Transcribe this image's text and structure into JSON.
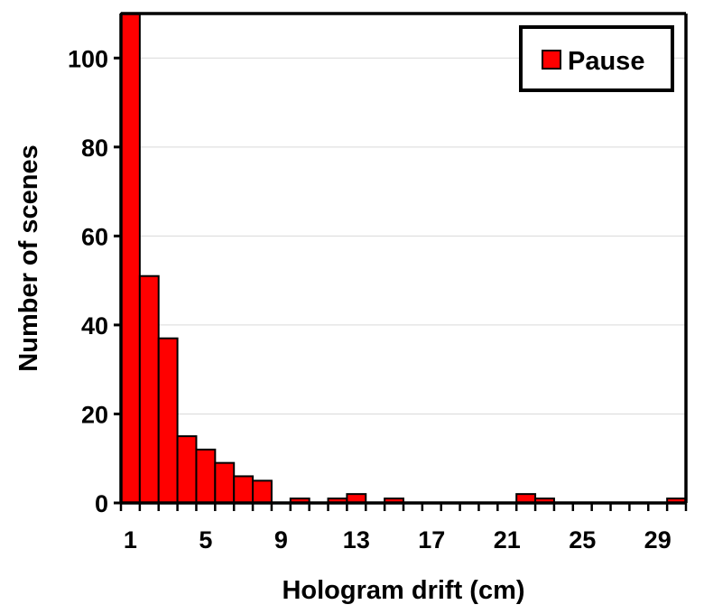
{
  "chart_data": {
    "type": "bar",
    "title": "",
    "xlabel": "Hologram drift (cm)",
    "ylabel": "Number of scenes",
    "categories": [
      1,
      2,
      3,
      4,
      5,
      6,
      7,
      8,
      9,
      10,
      11,
      12,
      13,
      14,
      15,
      16,
      17,
      18,
      19,
      20,
      21,
      22,
      23,
      24,
      25,
      26,
      27,
      28,
      29,
      30
    ],
    "series": [
      {
        "name": "Pause",
        "color": "#ff0000",
        "values": [
          110,
          51,
          37,
          15,
          12,
          9,
          6,
          5,
          0,
          1,
          0,
          1,
          2,
          0,
          1,
          0,
          0,
          0,
          0,
          0,
          0,
          2,
          1,
          0,
          0,
          0,
          0,
          0,
          0,
          1
        ]
      }
    ],
    "xticks": [
      1,
      5,
      9,
      13,
      17,
      21,
      25,
      29
    ],
    "yticks": [
      0,
      20,
      40,
      60,
      80,
      100
    ],
    "ylim": [
      0,
      110
    ],
    "grid": "horizontal",
    "legend": "top-right"
  }
}
